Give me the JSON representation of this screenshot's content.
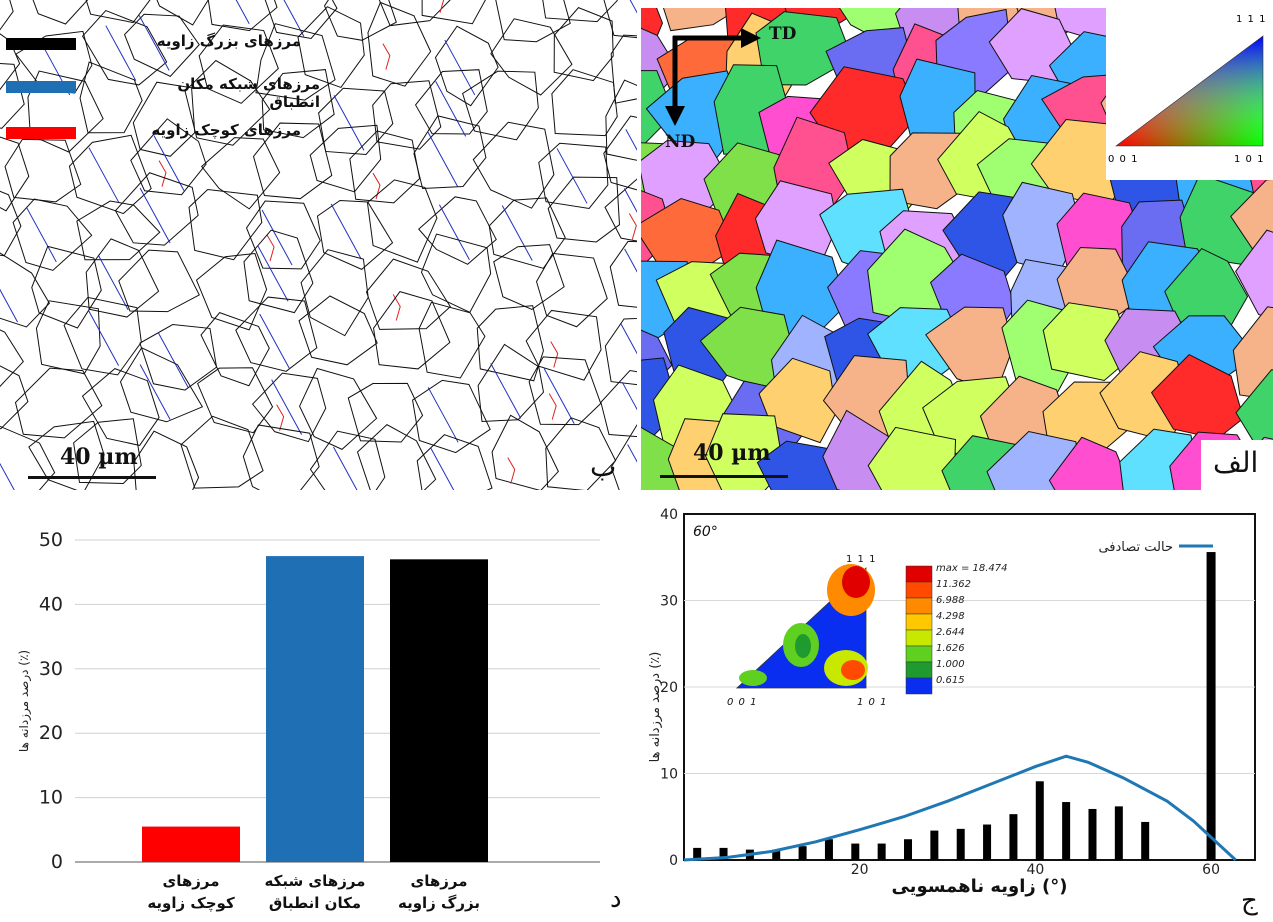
{
  "micrograph_b": {
    "panel_letter": "ب",
    "scale_bar": "40 µm",
    "legend": [
      {
        "label": "مرزهای بزرگ زاویه",
        "color": "#000000"
      },
      {
        "label": "مرزهای شبکه مکان انطباق",
        "color": "#1f6fb5"
      },
      {
        "label": "مرزهای کوچک زاویه",
        "color": "#ff0000"
      }
    ]
  },
  "micrograph_a": {
    "panel_letter": "الف",
    "scale_bar": "40 µm",
    "axis_td": "TD",
    "axis_nd": "ND",
    "triangle_labels": {
      "top": "1 1 1",
      "left": "0 0 1",
      "right": "1 0 1"
    }
  },
  "chart_data": [
    {
      "type": "bar",
      "panel_letter": "د",
      "title": "",
      "xlabel": "",
      "ylabel": "درصد مرزدانه ها (٪)",
      "ylim": [
        0,
        50
      ],
      "yticks": [
        0,
        10,
        20,
        30,
        40,
        50
      ],
      "categories": [
        {
          "line1": "مرزهای",
          "line2": "کوچک زاویه"
        },
        {
          "line1": "مرزهای شبکه",
          "line2": "مکان انطباق"
        },
        {
          "line1": "مرزهای",
          "line2": "بزرگ زاویه"
        }
      ],
      "values": [
        5.5,
        47.5,
        47.0
      ],
      "colors": [
        "#ff0000",
        "#1f6fb5",
        "#000000"
      ],
      "grid": true
    },
    {
      "type": "bar",
      "panel_letter": "ج",
      "title": "",
      "xlabel": "زاویه ناهمسویی (°)",
      "ylabel": "درصد مرزدانه ها (٪)",
      "xlim": [
        0,
        65
      ],
      "ylim": [
        0,
        40
      ],
      "xticks": [
        20,
        40,
        60
      ],
      "yticks": [
        0,
        10,
        20,
        30,
        40
      ],
      "grid": true,
      "legend_position": "top-right",
      "bars": {
        "x": [
          1.5,
          4.5,
          7.5,
          10.5,
          13.5,
          16.5,
          19.5,
          22.5,
          25.5,
          28.5,
          31.5,
          34.5,
          37.5,
          40.5,
          43.5,
          46.5,
          49.5,
          52.5,
          55.5,
          60
        ],
        "values": [
          1.4,
          1.4,
          1.2,
          1.2,
          1.6,
          2.4,
          1.9,
          1.9,
          2.4,
          3.4,
          3.6,
          4.1,
          5.3,
          9.1,
          6.7,
          5.9,
          6.2,
          4.4,
          0,
          35.6
        ],
        "color": "#000000"
      },
      "series": [
        {
          "name": "حالت تصادفی",
          "color": "#1f77b4",
          "x": [
            0,
            5,
            10,
            15,
            20,
            25,
            30,
            35,
            40,
            43.5,
            46,
            50,
            55,
            58,
            62.8
          ],
          "y": [
            0,
            0.3,
            1.0,
            2.1,
            3.5,
            5.0,
            6.8,
            8.8,
            10.8,
            12.0,
            11.3,
            9.5,
            6.8,
            4.5,
            0
          ]
        }
      ],
      "inset": {
        "title": "60°",
        "corner_labels": {
          "top": "1 1 1",
          "left": "0 0 1",
          "right": "1 0 1"
        },
        "colorbar_levels": [
          "max = 18.474",
          "11.362",
          "6.988",
          "4.298",
          "2.644",
          "1.626",
          "1.000",
          "0.615"
        ],
        "colorbar_colors": [
          "#e00000",
          "#ff4a00",
          "#ff8a00",
          "#ffc800",
          "#c8e800",
          "#5fd020",
          "#1e9a2e",
          "#0a2ef0"
        ]
      }
    }
  ]
}
